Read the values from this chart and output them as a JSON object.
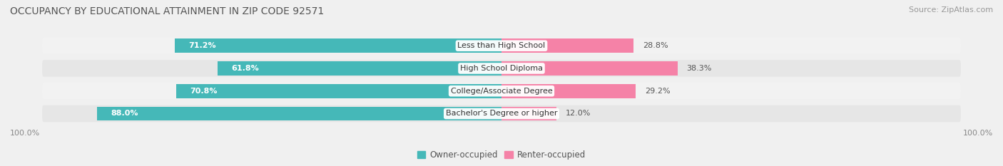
{
  "title": "OCCUPANCY BY EDUCATIONAL ATTAINMENT IN ZIP CODE 92571",
  "source": "Source: ZipAtlas.com",
  "categories": [
    "Less than High School",
    "High School Diploma",
    "College/Associate Degree",
    "Bachelor's Degree or higher"
  ],
  "owner_values": [
    71.2,
    61.8,
    70.8,
    88.0
  ],
  "renter_values": [
    28.8,
    38.3,
    29.2,
    12.0
  ],
  "owner_color": "#45b8b8",
  "renter_color": "#f582a7",
  "row_bg_light": "#f2f2f2",
  "row_bg_dark": "#e6e6e6",
  "background_color": "#f0f0f0",
  "title_fontsize": 10,
  "label_fontsize": 8,
  "value_fontsize": 8,
  "tick_fontsize": 8,
  "source_fontsize": 8,
  "legend_fontsize": 8.5,
  "bar_height": 0.62,
  "axis_label_left": "100.0%",
  "axis_label_right": "100.0%"
}
